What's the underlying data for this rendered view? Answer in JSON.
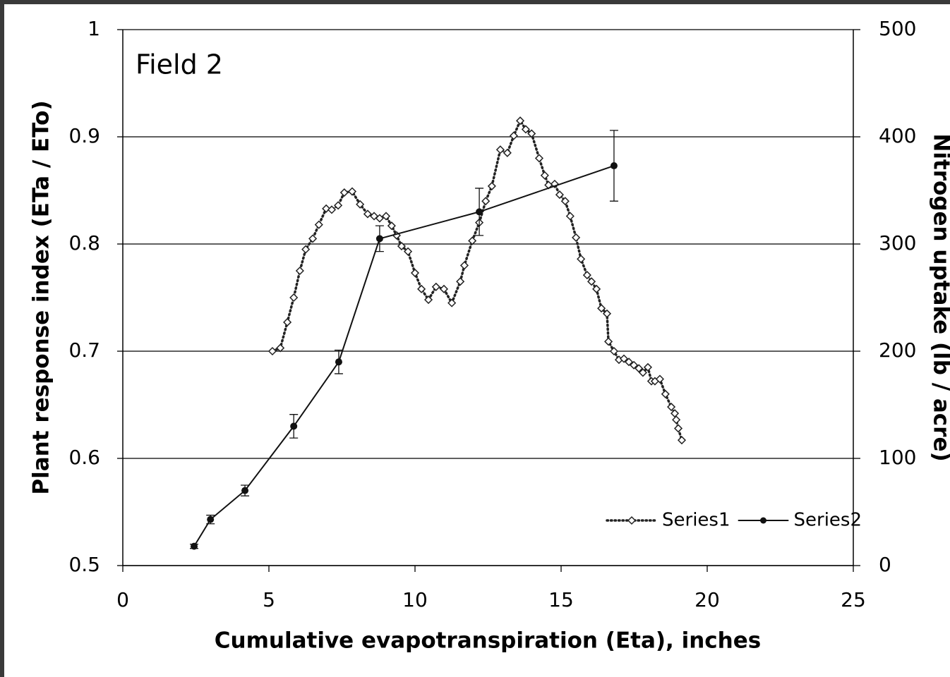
{
  "chart_data": {
    "type": "scatter",
    "annotation": "Field 2",
    "x_label": "Cumulative evapotranspiration (Eta), inches",
    "y_label": "Plant response index (ETa / ETo)",
    "y2_label": "Nitrogen uptake (lb / acre)",
    "xlim": [
      0,
      25
    ],
    "xticks": [
      0,
      5,
      10,
      15,
      20,
      25
    ],
    "ylim": [
      0.5,
      1
    ],
    "yticks": [
      0.5,
      0.6,
      0.7,
      0.8,
      0.9,
      1
    ],
    "y2lim": [
      0,
      500
    ],
    "y2ticks": [
      0,
      100,
      200,
      300,
      400,
      500
    ],
    "grid": true,
    "legend": "lower right",
    "series": [
      {
        "name": "Series1",
        "color": "#222222",
        "style": "dotted-diamond",
        "x": [
          5.12,
          5.39,
          5.63,
          5.85,
          6.06,
          6.26,
          6.5,
          6.71,
          6.96,
          7.15,
          7.37,
          7.58,
          7.85,
          8.12,
          8.38,
          8.6,
          8.79,
          9.01,
          9.2,
          9.37,
          9.54,
          9.76,
          10.0,
          10.22,
          10.46,
          10.72,
          10.99,
          11.26,
          11.55,
          11.69,
          11.96,
          12.2,
          12.42,
          12.63,
          12.92,
          13.16,
          13.38,
          13.6,
          13.79,
          13.99,
          14.25,
          14.44,
          14.57,
          14.78,
          14.95,
          15.14,
          15.31,
          15.51,
          15.68,
          15.89,
          16.04,
          16.21,
          16.38,
          16.57,
          16.62,
          16.81,
          16.98,
          17.15,
          17.32,
          17.49,
          17.66,
          17.8,
          17.97,
          18.09,
          18.21,
          18.38,
          18.57,
          18.77,
          18.89,
          18.94,
          19.01,
          19.13
        ],
        "values": [
          0.7,
          0.703,
          0.727,
          0.75,
          0.775,
          0.795,
          0.805,
          0.818,
          0.833,
          0.832,
          0.836,
          0.848,
          0.849,
          0.837,
          0.828,
          0.826,
          0.824,
          0.826,
          0.817,
          0.808,
          0.798,
          0.793,
          0.773,
          0.758,
          0.748,
          0.76,
          0.758,
          0.745,
          0.765,
          0.78,
          0.803,
          0.82,
          0.84,
          0.854,
          0.888,
          0.885,
          0.901,
          0.915,
          0.907,
          0.903,
          0.88,
          0.864,
          0.855,
          0.856,
          0.846,
          0.84,
          0.826,
          0.806,
          0.786,
          0.771,
          0.765,
          0.758,
          0.74,
          0.735,
          0.709,
          0.7,
          0.692,
          0.693,
          0.69,
          0.687,
          0.684,
          0.68,
          0.685,
          0.672,
          0.672,
          0.674,
          0.66,
          0.648,
          0.642,
          0.636,
          0.628,
          0.617
        ]
      },
      {
        "name": "Series2",
        "color": "#111111",
        "style": "solid-dot",
        "axis": "y2",
        "x": [
          2.44,
          3.0,
          4.18,
          5.85,
          7.39,
          8.79,
          12.2,
          16.81
        ],
        "values": [
          18,
          43,
          70,
          130,
          190,
          305,
          330,
          373
        ],
        "errors": [
          2,
          4,
          5,
          11,
          11,
          12,
          22,
          33
        ]
      }
    ]
  }
}
